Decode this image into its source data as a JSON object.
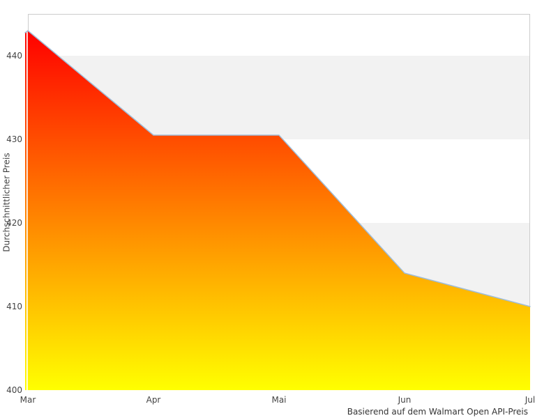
{
  "chart_data": {
    "type": "area",
    "x": [
      "Mar",
      "Apr",
      "Mai",
      "Jun",
      "Jul"
    ],
    "series": [
      {
        "name": "Durchschnittlicher Preis",
        "values": [
          443,
          430.5,
          430.5,
          414,
          410
        ]
      }
    ],
    "title": "",
    "xlabel": "",
    "ylabel": "Durchschnittlicher Preis",
    "caption": "Basierend auf dem Walmart Open API-Preis",
    "ylim": [
      400,
      445
    ],
    "yticks": [
      400,
      410,
      420,
      430,
      440
    ],
    "grid": "alternating-horizontal-bands",
    "legend": "none",
    "colors": {
      "gradient_top": "#ff0000",
      "gradient_bottom": "#ffff00",
      "line": "#9fbdd8",
      "band_gray": "#f2f2f2",
      "plot_border": "#cccccc",
      "label_text": "#444444"
    }
  }
}
